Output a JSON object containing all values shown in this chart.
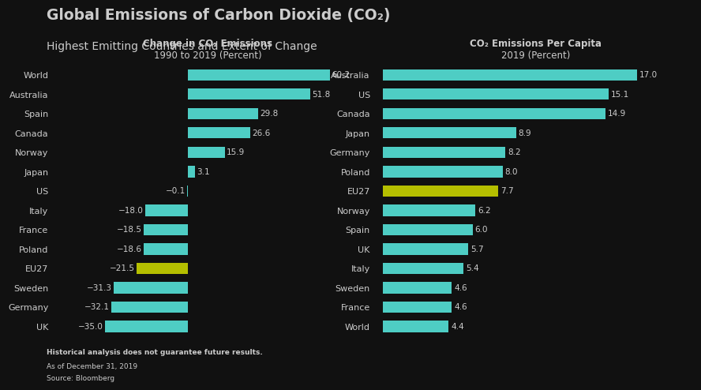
{
  "title": "Global Emissions of Carbon Dioxide (CO₂)",
  "subtitle": "Highest Emitting Countries and Extent of Change",
  "bg_color": "#111111",
  "text_color": "#cccccc",
  "teal_color": "#4ecdc4",
  "yellow_green_color": "#b5bf00",
  "chart1": {
    "title_line1": "Change in CO₂ Emissions",
    "title_line2": "1990 to 2019 (Percent)",
    "categories": [
      "World",
      "Australia",
      "Spain",
      "Canada",
      "Norway",
      "Japan",
      "US",
      "Italy",
      "France",
      "Poland",
      "EU27",
      "Sweden",
      "Germany",
      "UK"
    ],
    "values": [
      60.2,
      51.8,
      29.8,
      26.6,
      15.9,
      3.1,
      -0.1,
      -18.0,
      -18.5,
      -18.6,
      -21.5,
      -31.3,
      -32.1,
      -35.0
    ],
    "highlight": [
      "EU27"
    ],
    "value_labels": [
      "60.2",
      "51.8",
      "29.8",
      "26.6",
      "15.9",
      "3.1",
      "−0.1",
      "−18.0",
      "−18.5",
      "−18.6",
      "−21.5",
      "−31.3",
      "−32.1",
      "−35.0"
    ]
  },
  "chart2": {
    "title_line1": "CO₂ Emissions Per Capita",
    "title_line2": "2019 (Percent)",
    "categories": [
      "Australia",
      "US",
      "Canada",
      "Japan",
      "Germany",
      "Poland",
      "EU27",
      "Norway",
      "Spain",
      "UK",
      "Italy",
      "Sweden",
      "France",
      "World"
    ],
    "values": [
      17.0,
      15.1,
      14.9,
      8.9,
      8.2,
      8.0,
      7.7,
      6.2,
      6.0,
      5.7,
      5.4,
      4.6,
      4.6,
      4.4
    ],
    "highlight": [
      "EU27"
    ],
    "value_labels": [
      "17.0",
      "15.1",
      "14.9",
      "8.9",
      "8.2",
      "8.0",
      "7.7",
      "6.2",
      "6.0",
      "5.7",
      "5.4",
      "4.6",
      "4.6",
      "4.4"
    ]
  },
  "footnote1": "Historical analysis does not guarantee future results.",
  "footnote2": "As of December 31, 2019",
  "footnote3": "Source: Bloomberg"
}
